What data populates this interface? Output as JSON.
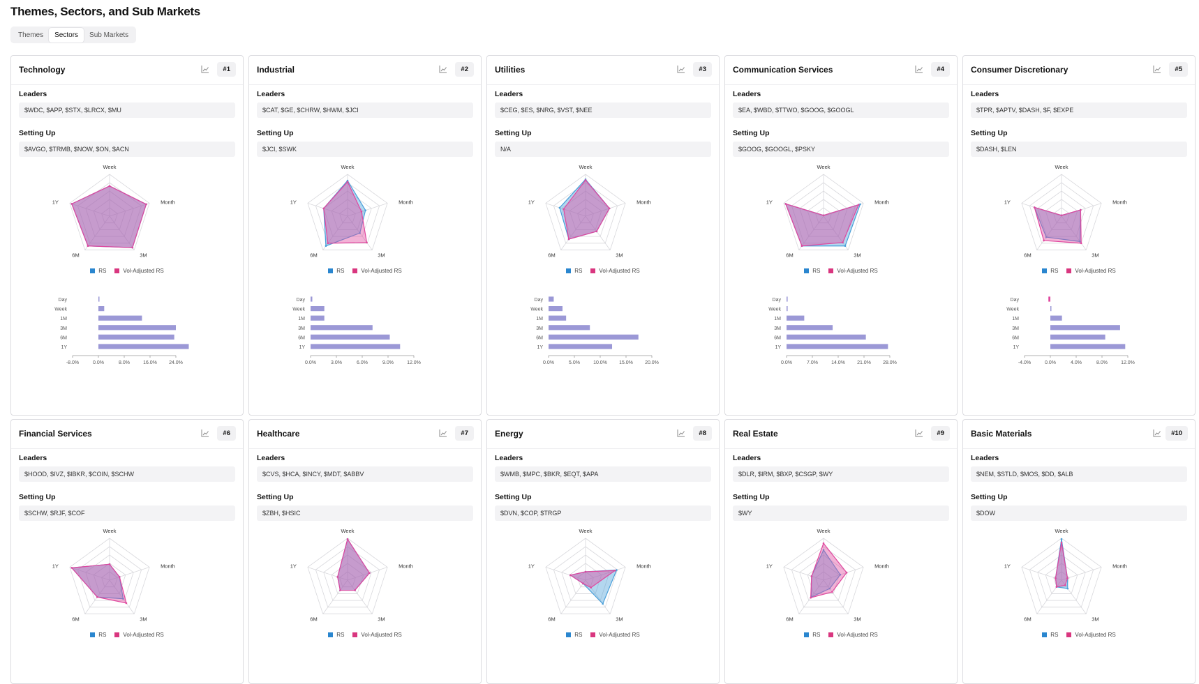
{
  "page": {
    "title": "Themes, Sectors, and Sub Markets"
  },
  "tabs": [
    {
      "label": "Themes",
      "active": false
    },
    {
      "label": "Sectors",
      "active": true
    },
    {
      "label": "Sub Markets",
      "active": false
    }
  ],
  "labels": {
    "leaders": "Leaders",
    "setting_up": "Setting Up"
  },
  "legend": {
    "rs": "RS",
    "vol": "Vol-Adjusted RS"
  },
  "radar_axes": [
    "Week",
    "Month",
    "3M",
    "6M",
    "1Y"
  ],
  "bar_categories": [
    "Day",
    "Week",
    "1M",
    "3M",
    "6M",
    "1Y"
  ],
  "icons": {
    "chart": "line-chart-icon"
  },
  "colors": {
    "rs": "#4a9fd9",
    "vol": "#e0479e",
    "bar": "#9b98d6",
    "rs_legend": "#2a86cf",
    "vol_legend": "#d9367f"
  },
  "sectors": [
    {
      "name": "Technology",
      "rank": "#1",
      "leaders": "$WDC, $APP, $STX, $LRCX, $MU",
      "setting_up": "$AVGO, $TRMB, $NOW, $ON, $ACN",
      "rs": [
        0.72,
        0.92,
        0.93,
        0.88,
        0.95
      ],
      "vol": [
        0.72,
        0.92,
        0.93,
        0.88,
        0.95
      ],
      "bars": [
        0.3,
        1.8,
        13.5,
        24.0,
        23.5,
        28.0
      ],
      "xmin": -8,
      "xmax": 24,
      "xstep": 8,
      "decimals": 1
    },
    {
      "name": "Industrial",
      "rank": "#2",
      "leaders": "$CAT, $GE, $CHRW, $HWM, $JCI",
      "setting_up": "$JCI, $SWK",
      "rs": [
        0.85,
        0.45,
        0.5,
        0.88,
        0.6
      ],
      "vol": [
        0.82,
        0.35,
        0.78,
        0.8,
        0.6
      ],
      "bars": [
        0.2,
        1.6,
        1.6,
        7.2,
        9.2,
        10.4
      ],
      "xmin": 0,
      "xmax": 12,
      "xstep": 3,
      "decimals": 1
    },
    {
      "name": "Utilities",
      "rank": "#3",
      "leaders": "$CEG, $ES, $NRG, $VST, $NEE",
      "setting_up": "N/A",
      "rs": [
        0.88,
        0.6,
        0.45,
        0.68,
        0.65
      ],
      "vol": [
        0.86,
        0.6,
        0.45,
        0.68,
        0.55
      ],
      "bars": [
        1.0,
        2.7,
        3.4,
        8.0,
        17.4,
        12.3
      ],
      "xmin": 0,
      "xmax": 20,
      "xstep": 5,
      "decimals": 1
    },
    {
      "name": "Communication Services",
      "rank": "#4",
      "leaders": "$EA, $WBD, $TTWO, $GOOG, $GOOGL",
      "setting_up": "$GOOG, $GOOGL, $PSKY",
      "rs": [
        0.02,
        0.92,
        0.88,
        0.88,
        0.95
      ],
      "vol": [
        0.02,
        0.88,
        0.78,
        0.88,
        0.95
      ],
      "bars": [
        0.3,
        0.3,
        4.8,
        12.5,
        21.5,
        27.5
      ],
      "xmin": 0,
      "xmax": 28,
      "xstep": 7,
      "decimals": 1
    },
    {
      "name": "Consumer Discretionary",
      "rank": "#5",
      "leaders": "$TPR, $APTV, $DASH, $F, $EXPE",
      "setting_up": "$DASH, $LEN",
      "rs": [
        0.02,
        0.48,
        0.75,
        0.62,
        0.68
      ],
      "vol": [
        0.02,
        0.48,
        0.8,
        0.72,
        0.68
      ],
      "bars": [
        -0.3,
        0.1,
        1.8,
        10.8,
        8.5,
        11.6
      ],
      "xmin": -4,
      "xmax": 12,
      "xstep": 4,
      "decimals": 1
    },
    {
      "name": "Financial Services",
      "rank": "#6",
      "leaders": "$HOOD, $IVZ, $IBKR, $COIN, $SCHW",
      "setting_up": "$SCHW, $RJF, $COF",
      "rs": [
        0.38,
        0.25,
        0.55,
        0.5,
        0.95
      ],
      "vol": [
        0.38,
        0.25,
        0.68,
        0.5,
        0.95
      ]
    },
    {
      "name": "Healthcare",
      "rank": "#7",
      "leaders": "$CVS, $HCA, $INCY, $MDT, $ABBV",
      "setting_up": "$ZBH, $HSIC",
      "rs": [
        0.98,
        0.55,
        0.3,
        0.3,
        0.25
      ],
      "vol": [
        0.98,
        0.55,
        0.3,
        0.3,
        0.25
      ]
    },
    {
      "name": "Energy",
      "rank": "#8",
      "leaders": "$WMB, $MPC, $BKR, $EQT, $APA",
      "setting_up": "$DVN, $COP, $TRGP",
      "rs": [
        0.2,
        0.78,
        0.7,
        0.1,
        0.38
      ],
      "vol": [
        0.2,
        0.74,
        0.22,
        0.1,
        0.38
      ]
    },
    {
      "name": "Real Estate",
      "rank": "#9",
      "leaders": "$DLR, $IRM, $BXP, $CSGP, $WY",
      "setting_up": "$WY",
      "rs": [
        0.72,
        0.42,
        0.25,
        0.5,
        0.3
      ],
      "vol": [
        0.88,
        0.58,
        0.35,
        0.52,
        0.3
      ]
    },
    {
      "name": "Basic Materials",
      "rank": "#10",
      "leaders": "$NEM, $STLD, $MOS, $DD, $ALB",
      "setting_up": "$DOW",
      "rs": [
        0.98,
        0.15,
        0.25,
        0.2,
        0.15
      ],
      "vol": [
        0.9,
        0.15,
        0.15,
        0.2,
        0.15
      ]
    }
  ]
}
